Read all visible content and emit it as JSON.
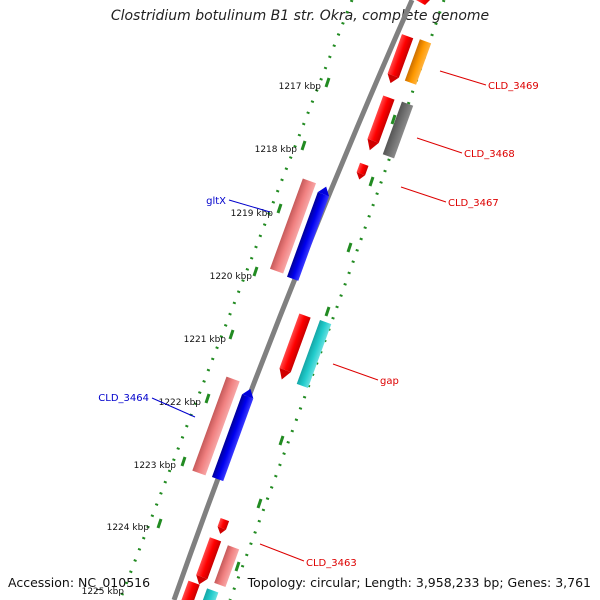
{
  "title": "Clostridium botulinum B1 str. Okra, complete genome",
  "accession": "Accession: NC_010516",
  "topology": "Topology: circular; Length: 3,958,233 bp; Genes: 3,761",
  "colors": {
    "backbone": "#808080",
    "tick": "#228b22",
    "forward_cds": "#ff0000",
    "reverse_cds": "#ff0000",
    "gene_label_red": "#dd0000",
    "gene_label_blue": "#0000cc",
    "bar_pink": "#f08080",
    "bar_blue": "#0000ee",
    "bar_orange": "#ff9900",
    "bar_gray": "#6e6e6e",
    "bar_cyan": "#22cccc"
  },
  "scale_labels": [
    "1217 kbp",
    "1218 kbp",
    "1219 kbp",
    "1220 kbp",
    "1221 kbp",
    "1222 kbp",
    "1223 kbp",
    "1224 kbp",
    "1225 kbp"
  ],
  "gene_labels": [
    {
      "id": "cld3469",
      "text": "CLD_3469",
      "strand": "reverse"
    },
    {
      "id": "cld3468",
      "text": "CLD_3468",
      "strand": "reverse"
    },
    {
      "id": "cld3467",
      "text": "CLD_3467",
      "strand": "reverse"
    },
    {
      "id": "gltx",
      "text": "gltX",
      "strand": "forward"
    },
    {
      "id": "gap",
      "text": "gap",
      "strand": "reverse"
    },
    {
      "id": "cld3464",
      "text": "CLD_3464",
      "strand": "forward"
    },
    {
      "id": "cld3463",
      "text": "CLD_3463",
      "strand": "reverse"
    }
  ]
}
